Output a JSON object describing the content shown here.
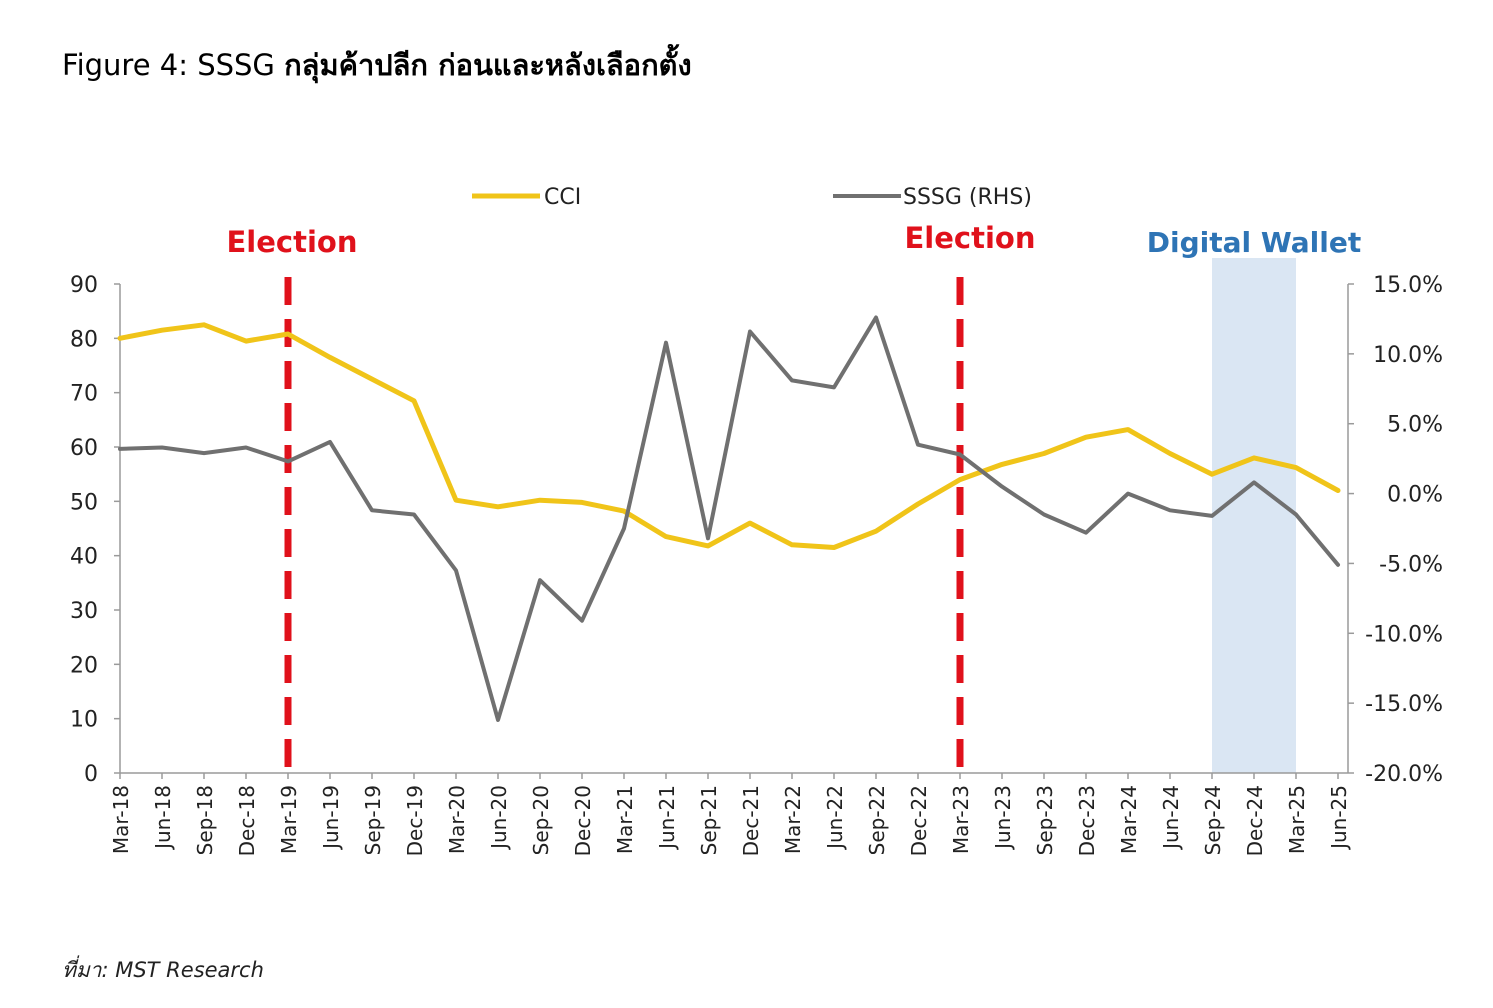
{
  "title_prefix": "Figure 4: SSSG ",
  "title_thai": "กลุ่มค้าปลีก ก่อนและหลังเลือกตั้ง",
  "source": "ที่มา: MST Research",
  "colors": {
    "cci": "#f0c419",
    "sssg": "#707070",
    "election": "#e0111b",
    "digital_wallet_text": "#2e74b5",
    "digital_wallet_band": "#dae6f3",
    "axis": "#9a9a9a"
  },
  "chart_data": {
    "type": "line",
    "legend": {
      "placement": "top-center",
      "entries": [
        "CCI",
        "SSSG (RHS)"
      ]
    },
    "grid": false,
    "categories": [
      "Mar-18",
      "Jun-18",
      "Sep-18",
      "Dec-18",
      "Mar-19",
      "Jun-19",
      "Sep-19",
      "Dec-19",
      "Mar-20",
      "Jun-20",
      "Sep-20",
      "Dec-20",
      "Mar-21",
      "Jun-21",
      "Sep-21",
      "Dec-21",
      "Mar-22",
      "Jun-22",
      "Sep-22",
      "Dec-22",
      "Mar-23",
      "Jun-23",
      "Sep-23",
      "Dec-23",
      "Mar-24",
      "Jun-24",
      "Sep-24",
      "Dec-24",
      "Mar-25",
      "Jun-25"
    ],
    "left_axis": {
      "ylim": [
        0,
        90
      ],
      "ticks": [
        "0",
        "10",
        "20",
        "30",
        "40",
        "50",
        "60",
        "70",
        "80",
        "90"
      ],
      "tick_values": [
        0,
        10,
        20,
        30,
        40,
        50,
        60,
        70,
        80,
        90
      ]
    },
    "right_axis": {
      "ylim": [
        -20,
        15
      ],
      "ticks": [
        "-20.0%",
        "-15.0%",
        "-10.0%",
        "-5.0%",
        "0.0%",
        "5.0%",
        "10.0%",
        "15.0%"
      ],
      "tick_values": [
        -20,
        -15,
        -10,
        -5,
        0,
        5,
        10,
        15
      ]
    },
    "series": [
      {
        "name": "CCI",
        "axis": "left",
        "values": [
          80,
          81.5,
          82.5,
          79.5,
          80.8,
          76.5,
          72.5,
          68.5,
          50.2,
          49,
          50.2,
          49.8,
          48.2,
          43.5,
          41.8,
          46,
          42,
          41.5,
          44.5,
          49.5,
          54,
          56.8,
          58.8,
          61.8,
          63.2,
          58.8,
          55,
          58,
          56.2,
          52
        ]
      },
      {
        "name": "SSSG (RHS)",
        "axis": "right",
        "values": [
          3.2,
          3.3,
          2.9,
          3.3,
          2.3,
          3.7,
          -1.2,
          -1.5,
          -5.5,
          -16.2,
          -6.2,
          -9.1,
          -2.5,
          10.8,
          -3.2,
          11.6,
          8.1,
          7.6,
          12.6,
          3.5,
          2.8,
          0.5,
          -1.5,
          -2.8,
          0,
          -1.2,
          -1.6,
          0.8,
          -1.5,
          -5.1
        ]
      }
    ],
    "annotations": [
      {
        "text": "Election",
        "at_category": "Mar-19",
        "type": "dashed-vline"
      },
      {
        "text": "Election",
        "at_category": "Mar-23",
        "type": "dashed-vline"
      },
      {
        "text": "Digital Wallet",
        "from_category": "Sep-24",
        "to_category": "Mar-25",
        "type": "shaded-band"
      }
    ]
  }
}
